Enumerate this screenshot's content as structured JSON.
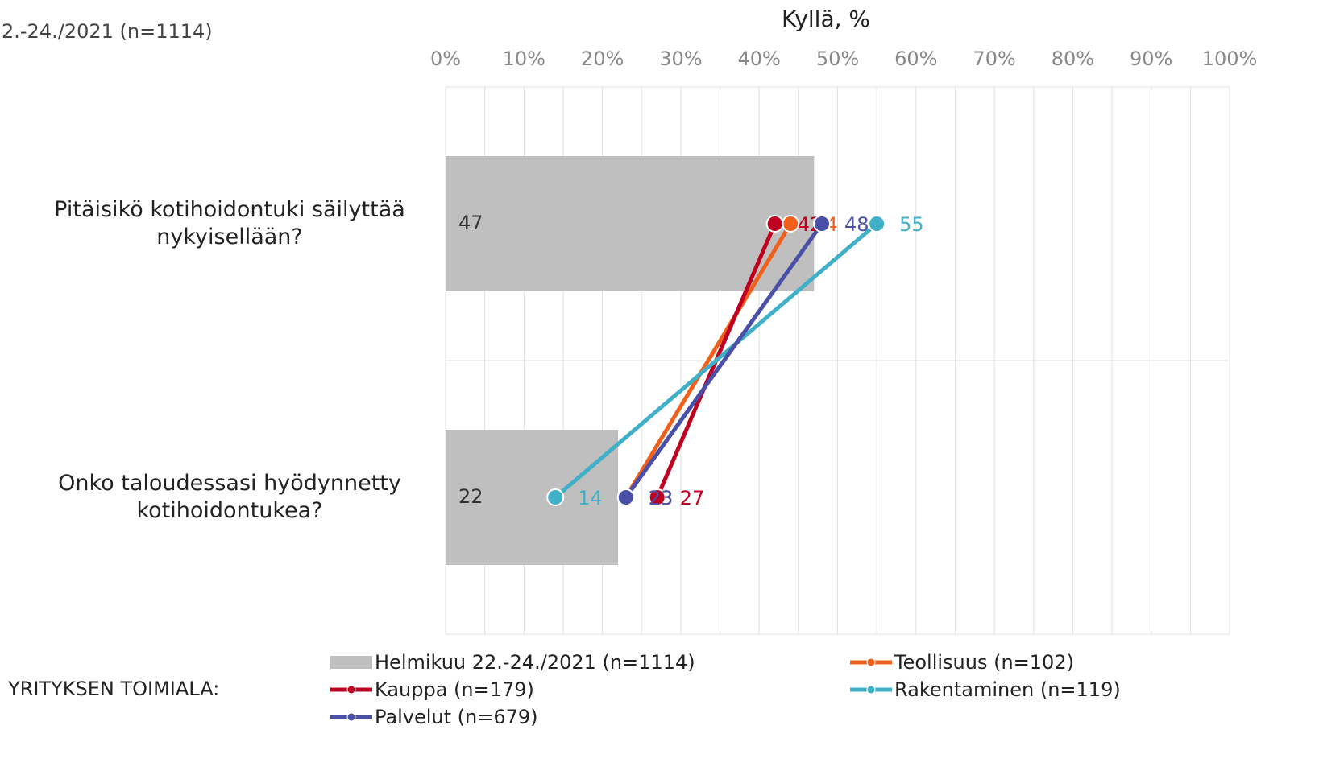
{
  "chart_data": {
    "type": "bar",
    "title": "Kyllä, %",
    "header_note": "2.-24./2021 (n=1114)",
    "legend_title": "YRITYKSEN TOIMIALA:",
    "categories": [
      "Pitäisikö kotihoidontuki säilyttää nykyisellään?",
      "Onko taloudessasi hyödynnetty kotihoidontukea?"
    ],
    "bar_series": {
      "name": "Helmikuu 22.-24./2021 (n=1114)",
      "color": "#bfbfbf",
      "values": [
        47,
        22
      ]
    },
    "series": [
      {
        "name": "Teollisuus (n=102)",
        "color": "#f0601a",
        "values": [
          44,
          23
        ]
      },
      {
        "name": "Kauppa (n=179)",
        "color": "#c00020",
        "values": [
          42,
          27
        ]
      },
      {
        "name": "Rakentaminen (n=119)",
        "color": "#40b0c8",
        "values": [
          55,
          14
        ]
      },
      {
        "name": "Palvelut (n=679)",
        "color": "#4a4fa8",
        "values": [
          48,
          23
        ]
      }
    ],
    "xlim": [
      0,
      100
    ],
    "xticks": [
      {
        "value": 0,
        "label": "0%"
      },
      {
        "value": 10,
        "label": "10%"
      },
      {
        "value": 20,
        "label": "20%"
      },
      {
        "value": 30,
        "label": "30%"
      },
      {
        "value": 40,
        "label": "40%"
      },
      {
        "value": 50,
        "label": "50%"
      },
      {
        "value": 60,
        "label": "60%"
      },
      {
        "value": 70,
        "label": "70%"
      },
      {
        "value": 80,
        "label": "80%"
      },
      {
        "value": 90,
        "label": "90%"
      },
      {
        "value": 100,
        "label": "100%"
      }
    ],
    "x_minor_ticks": [
      5,
      15,
      25,
      35,
      45,
      55,
      65,
      75,
      85,
      95
    ],
    "grid": true
  }
}
